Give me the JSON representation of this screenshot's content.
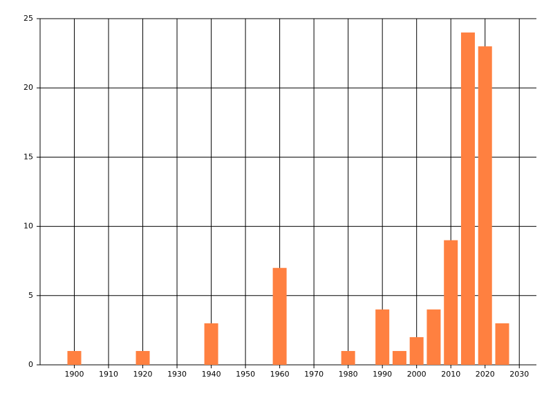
{
  "chart_data": {
    "type": "bar",
    "color": "#ff8040",
    "grid": true,
    "x": [
      1900,
      1920,
      1940,
      1960,
      1980,
      1990,
      1995,
      2000,
      2005,
      2010,
      2015,
      2020,
      2025
    ],
    "values": [
      1,
      1,
      3,
      7,
      1,
      4,
      1,
      2,
      4,
      9,
      24,
      23,
      3
    ],
    "xlim": [
      1890,
      2035
    ],
    "xticks": [
      1900,
      1910,
      1920,
      1930,
      1940,
      1950,
      1960,
      1970,
      1980,
      1990,
      2000,
      2010,
      2020,
      2030
    ],
    "ylim": [
      0,
      25
    ],
    "yticks": [
      0,
      5,
      10,
      15,
      20,
      25
    ]
  }
}
